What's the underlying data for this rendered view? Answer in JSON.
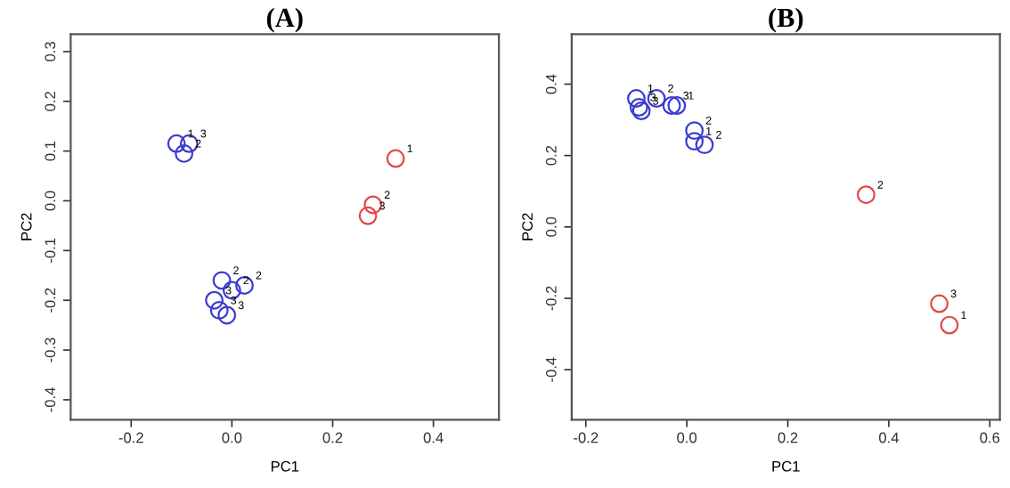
{
  "chart_data": [
    {
      "type": "scatter",
      "title": "(A)",
      "xlabel": "PC1",
      "ylabel": "PC2",
      "marker": "circle",
      "grid": false,
      "xlim": [
        -0.32,
        0.53
      ],
      "ylim": [
        -0.44,
        0.335
      ],
      "xticks": [
        -0.2,
        {
          "value": 0,
          "label": "0.0"
        },
        0.2,
        0.4
      ],
      "yticks": [
        -0.4,
        -0.3,
        -0.2,
        -0.1,
        {
          "value": 0,
          "label": "0.0"
        },
        0.1,
        0.2,
        0.3
      ],
      "series": [
        {
          "color": "#3b3bd0",
          "x": [
            -0.11,
            -0.085,
            -0.095,
            -0.02,
            0.0,
            0.025,
            -0.035,
            -0.025,
            -0.01
          ],
          "values": [
            0.115,
            0.115,
            0.095,
            -0.16,
            -0.18,
            -0.17,
            -0.2,
            -0.22,
            -0.23
          ]
        },
        {
          "color": "#e04848",
          "x": [
            0.325,
            0.28,
            0.27
          ],
          "values": [
            0.085,
            -0.008,
            -0.03
          ]
        }
      ],
      "annotations": [
        {
          "text": "1",
          "x": -0.11,
          "y": 0.115
        },
        {
          "text": "3",
          "x": -0.085,
          "y": 0.115
        },
        {
          "text": "2",
          "x": -0.095,
          "y": 0.095
        },
        {
          "text": "2",
          "x": -0.02,
          "y": -0.16
        },
        {
          "text": "2",
          "x": 0.0,
          "y": -0.18
        },
        {
          "text": "2",
          "x": 0.025,
          "y": -0.17
        },
        {
          "text": "3",
          "x": -0.035,
          "y": -0.2
        },
        {
          "text": "3",
          "x": -0.025,
          "y": -0.22
        },
        {
          "text": "3",
          "x": -0.01,
          "y": -0.23
        },
        {
          "text": "1",
          "x": 0.325,
          "y": 0.085
        },
        {
          "text": "2",
          "x": 0.28,
          "y": -0.008
        },
        {
          "text": "3",
          "x": 0.27,
          "y": -0.03
        }
      ]
    },
    {
      "type": "scatter",
      "title": "(B)",
      "xlabel": "PC1",
      "ylabel": "PC2",
      "marker": "circle",
      "grid": false,
      "xlim": [
        -0.228,
        0.62
      ],
      "ylim": [
        -0.54,
        0.54
      ],
      "xticks": [
        -0.2,
        {
          "value": 0,
          "label": "0.0"
        },
        0.2,
        0.4,
        0.6
      ],
      "yticks": [
        -0.4,
        -0.2,
        {
          "value": 0,
          "label": "0.0"
        },
        0.2,
        0.4
      ],
      "series": [
        {
          "color": "#3b3bd0",
          "x": [
            -0.1,
            -0.095,
            -0.09,
            -0.06,
            -0.03,
            -0.02,
            0.015,
            0.015,
            0.035
          ],
          "values": [
            0.36,
            0.335,
            0.325,
            0.36,
            0.34,
            0.34,
            0.27,
            0.24,
            0.23
          ]
        },
        {
          "color": "#e04848",
          "x": [
            0.355,
            0.5,
            0.52
          ],
          "values": [
            0.09,
            -0.215,
            -0.275
          ]
        }
      ],
      "annotations": [
        {
          "text": "1",
          "x": -0.1,
          "y": 0.36
        },
        {
          "text": "3",
          "x": -0.095,
          "y": 0.335
        },
        {
          "text": "3",
          "x": -0.09,
          "y": 0.325
        },
        {
          "text": "2",
          "x": -0.06,
          "y": 0.36
        },
        {
          "text": "3",
          "x": -0.03,
          "y": 0.34
        },
        {
          "text": "1",
          "x": -0.02,
          "y": 0.34
        },
        {
          "text": "2",
          "x": 0.015,
          "y": 0.27
        },
        {
          "text": "1",
          "x": 0.015,
          "y": 0.24
        },
        {
          "text": "2",
          "x": 0.035,
          "y": 0.23
        },
        {
          "text": "2",
          "x": 0.355,
          "y": 0.09
        },
        {
          "text": "3",
          "x": 0.5,
          "y": -0.215
        },
        {
          "text": "1",
          "x": 0.52,
          "y": -0.275
        }
      ]
    }
  ]
}
